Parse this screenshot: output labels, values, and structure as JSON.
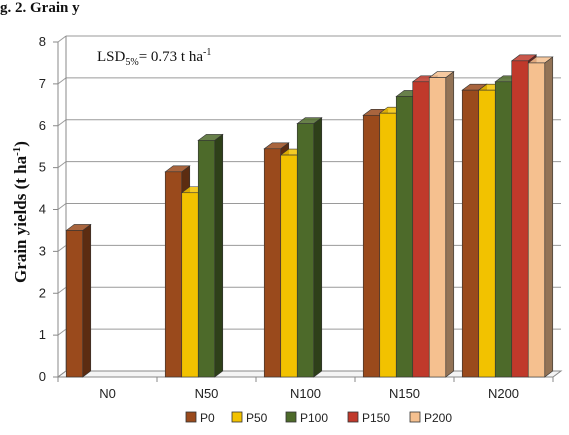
{
  "header_fragment": "g. 2. Grain y",
  "chart_data": {
    "type": "bar",
    "categories": [
      "N0",
      "N50",
      "N100",
      "N150",
      "N200"
    ],
    "ylabel": "Grain yields (t ha-1)",
    "ylabel_parts": {
      "main": "Grain yields (t ha",
      "sup": "-1",
      "close": ")"
    },
    "ylim": [
      0,
      8
    ],
    "yticks": [
      "0",
      "1",
      "2",
      "3",
      "4",
      "5",
      "6",
      "7",
      "8"
    ],
    "grid": true,
    "legend_position": "bottom",
    "series": [
      {
        "name": "P0",
        "color": "#9a4a1c",
        "values": [
          3.5,
          4.9,
          5.45,
          6.25,
          6.85
        ]
      },
      {
        "name": "P50",
        "color": "#f2c200",
        "values": [
          null,
          4.4,
          5.3,
          6.3,
          6.85
        ]
      },
      {
        "name": "P100",
        "color": "#4d6a2a",
        "values": [
          null,
          5.65,
          6.05,
          6.7,
          7.05
        ]
      },
      {
        "name": "P150",
        "color": "#c0392b",
        "values": [
          null,
          null,
          null,
          7.05,
          7.55
        ]
      },
      {
        "name": "P200",
        "color": "#f5c08f",
        "values": [
          null,
          null,
          null,
          7.15,
          7.5
        ]
      }
    ],
    "annotation": {
      "text": "LSD",
      "sub": "5%",
      "rest": "= 0.73  t ha",
      "sup": "-1"
    }
  }
}
